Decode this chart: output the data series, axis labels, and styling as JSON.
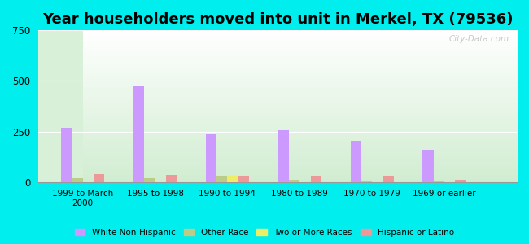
{
  "title": "Year householders moved into unit in Merkel, TX (79536)",
  "categories": [
    "1999 to March\n2000",
    "1995 to 1998",
    "1990 to 1994",
    "1980 to 1989",
    "1970 to 1979",
    "1969 or earlier"
  ],
  "series": {
    "White Non-Hispanic": [
      270,
      475,
      235,
      255,
      205,
      155
    ],
    "Other Race": [
      20,
      18,
      30,
      12,
      5,
      5
    ],
    "Two or More Races": [
      8,
      5,
      30,
      5,
      5,
      5
    ],
    "Hispanic or Latino": [
      38,
      35,
      28,
      28,
      30,
      10
    ]
  },
  "colors": {
    "White Non-Hispanic": "#cc99ff",
    "Other Race": "#bbcc88",
    "Two or More Races": "#eeee66",
    "Hispanic or Latino": "#ee9999"
  },
  "bar_width": 0.15,
  "ylim": [
    0,
    750
  ],
  "yticks": [
    0,
    250,
    500,
    750
  ],
  "background_color": "#00eeee",
  "title_fontsize": 13,
  "watermark": "City-Data.com"
}
